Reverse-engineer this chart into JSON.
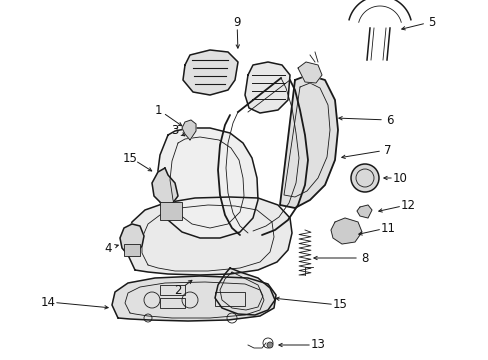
{
  "bg_color": "#ffffff",
  "line_color": "#1a1a1a",
  "label_color": "#111111",
  "figsize": [
    4.89,
    3.6
  ],
  "dpi": 100,
  "lw_main": 1.1,
  "lw_thin": 0.6,
  "lw_frame": 1.3
}
